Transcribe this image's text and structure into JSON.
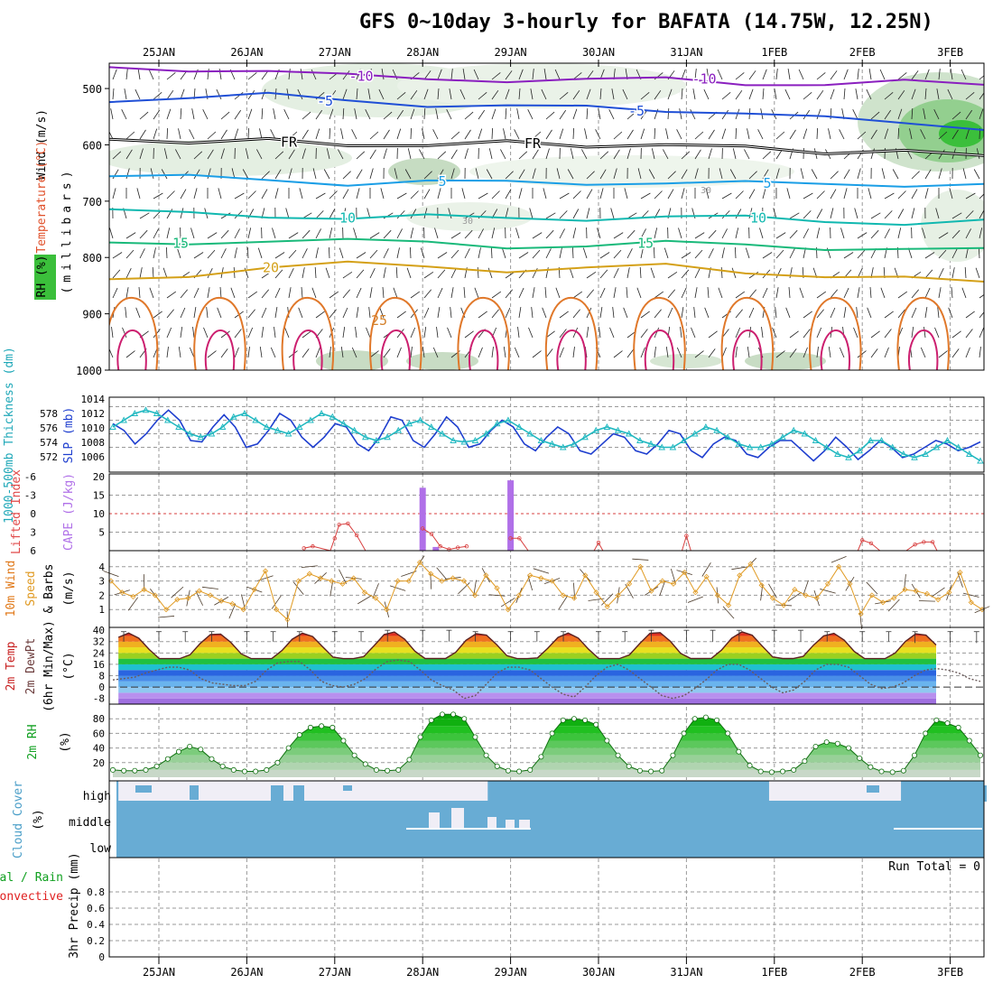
{
  "title": "GFS 0~10day 3-hourly for BAFATA (14.75W, 12.25N)",
  "dates": [
    "25JAN",
    "26JAN",
    "27JAN",
    "28JAN",
    "29JAN",
    "30JAN",
    "31JAN",
    "1FEB",
    "2FEB",
    "3FEB"
  ],
  "chart_data": [
    {
      "type": "heatmap",
      "panel": "upper-air",
      "ylabel_lines": [
        "Wind (m/s)",
        "Temperature (°C)",
        "RH (%)",
        "(millibars)"
      ],
      "ylabel_wind": "Wind (m/s)",
      "ylabel_temp": "Temperature (°C)",
      "ylabel_rh": "RH (%)",
      "ylabel_units": "(millibars)",
      "yticks": [
        500,
        600,
        700,
        800,
        900,
        1000
      ],
      "ylim": [
        1000,
        450
      ],
      "isotherms": [
        {
          "label": "-10",
          "color": "#8a1fbf",
          "pressure": [
            462,
            465,
            470,
            478,
            481,
            485,
            486,
            483,
            490,
            492,
            489,
            494
          ]
        },
        {
          "label": "-5",
          "color": "#1f4fd6",
          "pressure": [
            520,
            515,
            512,
            522,
            528,
            530,
            535,
            540,
            540,
            552,
            565,
            570
          ]
        },
        {
          "label": "FR",
          "color": "#000000",
          "pressure": [
            590,
            592,
            595,
            598,
            600,
            598,
            598,
            602,
            605,
            610,
            615,
            618
          ]
        },
        {
          "label": "5",
          "color": "#1a9ee6",
          "pressure": [
            655,
            658,
            662,
            668,
            665,
            668,
            668,
            665,
            668,
            672,
            670,
            668
          ]
        },
        {
          "label": "10",
          "color": "#10b8b0",
          "pressure": [
            718,
            722,
            725,
            730,
            728,
            730,
            730,
            728,
            730,
            735,
            738,
            736
          ]
        },
        {
          "label": "15",
          "color": "#19b97a",
          "pressure": [
            778,
            775,
            768,
            770,
            775,
            780,
            778,
            775,
            778,
            782,
            785,
            788
          ]
        },
        {
          "label": "20",
          "color": "#d4a017",
          "pressure": [
            840,
            830,
            818,
            812,
            815,
            822,
            820,
            815,
            825,
            832,
            838,
            845
          ]
        }
      ],
      "contour_labels_25": "25",
      "rh_label_30": "30"
    },
    {
      "type": "line",
      "panel": "slp-thickness",
      "ylabel_left": "1000-500mb Thickness (dm)",
      "ylabel_right": "SLP (mb)",
      "yticks_thickness": [
        "578",
        "576",
        "574",
        "572"
      ],
      "yticks_slp": [
        "1014",
        "1012",
        "1010",
        "1008",
        "1006"
      ],
      "slp_ylim": [
        1005,
        1015
      ],
      "series": [
        {
          "name": "SLP (mb)",
          "color": "#1f3fcf",
          "values": [
            1011.5,
            1010.5,
            1008.5,
            1010,
            1012,
            1013.5,
            1012,
            1009,
            1008.8,
            1011,
            1012.8,
            1011,
            1008,
            1008.5,
            1010.5,
            1013,
            1012,
            1009.5,
            1008,
            1009.5,
            1011.5,
            1011,
            1008.5,
            1007.5,
            1009.5,
            1012.5,
            1012,
            1009,
            1008,
            1010,
            1012.5,
            1011,
            1008,
            1008.5,
            1010.5,
            1012,
            1011,
            1008.5,
            1007.5,
            1009.5,
            1011,
            1010,
            1007.5,
            1007,
            1008.5,
            1010,
            1009.5,
            1007.5,
            1007,
            1008.5,
            1010.5,
            1010,
            1007.5,
            1006.5,
            1008.5,
            1009.5,
            1009,
            1007,
            1006.5,
            1008,
            1009,
            1009,
            1007.5,
            1006,
            1007.5,
            1009.5,
            1008,
            1006.2,
            1007.5,
            1009,
            1008,
            1006.5,
            1007,
            1008,
            1009,
            1008.5,
            1007.5,
            1008,
            1008.8
          ]
        },
        {
          "name": "1000-500mb Thickness (dm)",
          "color": "#20b8c0",
          "values": [
            1011,
            1012,
            1013,
            1013.5,
            1013,
            1012,
            1011,
            1010,
            1009.5,
            1010,
            1011,
            1012.5,
            1013,
            1012,
            1011,
            1010.5,
            1010,
            1011,
            1012,
            1013,
            1012.5,
            1011.5,
            1010.5,
            1009.5,
            1009,
            1009.5,
            1010.5,
            1011.5,
            1012,
            1011,
            1010,
            1009,
            1008.8,
            1009,
            1010,
            1011.5,
            1012,
            1011,
            1010,
            1009,
            1008.5,
            1008,
            1008.5,
            1009.5,
            1010.5,
            1011,
            1010.5,
            1010,
            1009,
            1008.5,
            1008,
            1008,
            1009,
            1010,
            1011,
            1010.5,
            1009.5,
            1008.5,
            1008,
            1008,
            1008.5,
            1009.5,
            1010.5,
            1010,
            1009,
            1008,
            1007,
            1006.5,
            1007.5,
            1009,
            1009,
            1008,
            1007,
            1006.5,
            1007,
            1008,
            1009,
            1008,
            1007,
            1006
          ]
        }
      ]
    },
    {
      "type": "bar",
      "panel": "stability",
      "ylabel_left": "Lifted Index",
      "ylabel_right": "CAPE (J/kg)",
      "li_ticks": [
        "-6",
        "-3",
        "0",
        "3",
        "6"
      ],
      "cape_ticks": [
        "20",
        "15",
        "10",
        "5"
      ],
      "cape_ylim": [
        0,
        20
      ],
      "cape_bars": [
        {
          "day_offset": 3.0,
          "value": 17
        },
        {
          "day_offset": 3.15,
          "value": 1
        },
        {
          "day_offset": 4.0,
          "value": 19
        }
      ],
      "lifted_index_line": [
        {
          "day_offset": 1.65,
          "value": 5.6
        },
        {
          "day_offset": 1.75,
          "value": 5.3
        },
        {
          "day_offset": 1.95,
          "value": 6
        },
        {
          "day_offset": 2.0,
          "value": 4
        },
        {
          "day_offset": 2.05,
          "value": 1.8
        },
        {
          "day_offset": 2.15,
          "value": 1.6
        },
        {
          "day_offset": 2.25,
          "value": 3.5
        },
        {
          "day_offset": 2.35,
          "value": 6
        },
        {
          "day_offset": 3.0,
          "value": 2.4
        },
        {
          "day_offset": 3.1,
          "value": 3.3
        },
        {
          "day_offset": 3.2,
          "value": 5.3
        },
        {
          "day_offset": 3.3,
          "value": 5.8
        },
        {
          "day_offset": 3.4,
          "value": 5.5
        },
        {
          "day_offset": 3.5,
          "value": 5.3
        },
        {
          "day_offset": 4.0,
          "value": 4
        },
        {
          "day_offset": 4.1,
          "value": 4
        },
        {
          "day_offset": 4.2,
          "value": 6
        },
        {
          "day_offset": 4.95,
          "value": 6
        },
        {
          "day_offset": 5.0,
          "value": 4.7
        },
        {
          "day_offset": 5.05,
          "value": 6
        },
        {
          "day_offset": 5.95,
          "value": 6
        },
        {
          "day_offset": 6.0,
          "value": 3.6
        },
        {
          "day_offset": 6.05,
          "value": 6
        },
        {
          "day_offset": 7.95,
          "value": 6
        },
        {
          "day_offset": 8.0,
          "value": 4.3
        },
        {
          "day_offset": 8.1,
          "value": 4.8
        },
        {
          "day_offset": 8.2,
          "value": 6
        },
        {
          "day_offset": 8.5,
          "value": 6
        },
        {
          "day_offset": 8.6,
          "value": 5
        },
        {
          "day_offset": 8.7,
          "value": 4.6
        },
        {
          "day_offset": 8.8,
          "value": 4.6
        },
        {
          "day_offset": 8.85,
          "value": 6
        }
      ]
    },
    {
      "type": "line",
      "panel": "wind10m",
      "ylabel_lines": [
        "10m Wind",
        "Speed",
        "& Barbs",
        "(m/s)"
      ],
      "yticks": [
        "4",
        "3",
        "2",
        "1"
      ],
      "ylim": [
        0,
        5
      ],
      "series": [
        {
          "name": "10m Wind Speed",
          "color": "#e09a22",
          "values": [
            3,
            2.2,
            1.9,
            2.4,
            2,
            1,
            1.7,
            1.8,
            2.3,
            2,
            1.6,
            1.4,
            1,
            2.4,
            3.7,
            1,
            0.3,
            3,
            3.5,
            3.2,
            3,
            2.8,
            3.2,
            2.2,
            1.8,
            1,
            3,
            3,
            4.3,
            3.5,
            3,
            3.2,
            3,
            2,
            3.4,
            2.5,
            1,
            2,
            3.4,
            3.2,
            3,
            2,
            1.8,
            3.4,
            2.2,
            1.2,
            2,
            2.8,
            4,
            2.3,
            3,
            2.8,
            3.6,
            2.2,
            3.3,
            2,
            1.3,
            3.4,
            4.2,
            2.7,
            1.8,
            1.3,
            2.4,
            2,
            1.8,
            2.8,
            4,
            2.8,
            0.7,
            2,
            1.5,
            1.8,
            2.4,
            2.3,
            2.1,
            1.7,
            2.2,
            3.6,
            1.5,
            1
          ]
        }
      ]
    },
    {
      "type": "area",
      "panel": "temperature",
      "ylabel_lines": [
        "2m Temp",
        "2m DewPt",
        "(6hr Min/Max)",
        "(°C)"
      ],
      "yticks": [
        "40",
        "32",
        "24",
        "16",
        "8",
        "0",
        "-8"
      ],
      "ylim": [
        -12,
        42
      ],
      "series": [
        {
          "name": "2m Temp",
          "color": "#5a2020",
          "daily_min": [
            18,
            18,
            18,
            18,
            18,
            18,
            18,
            18,
            18,
            17
          ],
          "daily_max": [
            38,
            38,
            38,
            39,
            38,
            38,
            39,
            39,
            38,
            38
          ]
        },
        {
          "name": "2m DewPt",
          "color": "#6a5a5a",
          "values": [
            5,
            6,
            7,
            10,
            12,
            14,
            14,
            12,
            6,
            3,
            2,
            1,
            1,
            4,
            12,
            17,
            18,
            18,
            12,
            4,
            1,
            0,
            2,
            6,
            13,
            18,
            19,
            18,
            12,
            5,
            1,
            -2,
            -8,
            -6,
            2,
            10,
            14,
            14,
            12,
            6,
            0,
            -5,
            -7,
            0,
            8,
            14,
            16,
            12,
            6,
            0,
            -6,
            -8,
            -6,
            -1,
            5,
            12,
            16,
            16,
            12,
            6,
            0,
            -4,
            -2,
            4,
            12,
            16,
            16,
            14,
            8,
            2,
            -1,
            0,
            3,
            8,
            12,
            13,
            12,
            10,
            6,
            4
          ]
        }
      ]
    },
    {
      "type": "area",
      "panel": "rh",
      "ylabel": "2m RH",
      "yunits": "(%)",
      "yticks": [
        "80",
        "60",
        "40",
        "20"
      ],
      "ylim": [
        0,
        100
      ],
      "series": [
        {
          "name": "2m RH",
          "color": "#10a020",
          "values": [
            10,
            9,
            9,
            10,
            15,
            25,
            35,
            42,
            38,
            25,
            15,
            10,
            8,
            8,
            10,
            20,
            40,
            58,
            68,
            70,
            68,
            50,
            30,
            18,
            10,
            9,
            10,
            24,
            55,
            78,
            86,
            86,
            80,
            55,
            30,
            15,
            9,
            8,
            10,
            28,
            60,
            78,
            80,
            78,
            72,
            50,
            30,
            15,
            9,
            8,
            9,
            30,
            60,
            80,
            82,
            78,
            60,
            35,
            16,
            8,
            7,
            8,
            10,
            22,
            42,
            48,
            46,
            40,
            26,
            14,
            8,
            7,
            9,
            30,
            60,
            78,
            74,
            68,
            50,
            30
          ]
        }
      ]
    },
    {
      "type": "heatmap",
      "panel": "cloud",
      "ylabel": "Cloud Cover",
      "yunits": "(%)",
      "levels": [
        "high",
        "middle",
        "low"
      ],
      "high_clear_segments": [
        [
          0.0,
          4.2
        ],
        [
          7.4,
          8.9
        ]
      ],
      "middle_cloud_segments": [
        [
          2.9,
          3.5
        ],
        [
          3.5,
          4.2
        ],
        [
          8.3,
          9.6
        ]
      ]
    },
    {
      "type": "bar",
      "panel": "precip",
      "ylabel_left_lines": [
        "Total / Rain",
        "Convective"
      ],
      "ylabel_units": "3hr Precip (mm)",
      "yticks": [
        "0.8",
        "0.6",
        "0.4",
        "0.2",
        "0"
      ],
      "ylim": [
        0,
        1
      ],
      "values": [],
      "annotation": "Run Total = 0"
    }
  ]
}
